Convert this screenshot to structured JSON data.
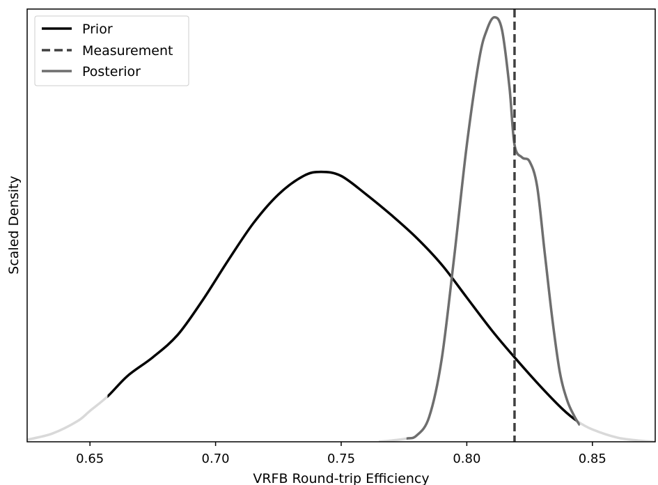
{
  "chart_data": {
    "type": "line",
    "xlabel": "VRFB Round-trip Efficiency",
    "ylabel": "Scaled Density",
    "xlim": [
      0.625,
      0.875
    ],
    "ylim": [
      0,
      1.05
    ],
    "x_ticks": [
      "0.65",
      "0.70",
      "0.75",
      "0.80",
      "0.85"
    ],
    "x_tick_values": [
      0.65,
      0.7,
      0.75,
      0.8,
      0.85
    ],
    "y_ticks": [],
    "grid": false,
    "legend": {
      "placement": "top-left",
      "entries": [
        {
          "label": "Prior",
          "color": "#000000",
          "style": "solid"
        },
        {
          "label": "Measurement",
          "color": "#404040",
          "style": "dashed"
        },
        {
          "label": "Posterior",
          "color": "#6e6e6e",
          "style": "solid"
        }
      ]
    },
    "measurement_x": 0.819,
    "series": [
      {
        "name": "Prior",
        "color": "#000000",
        "tail_color": "#d9d9d9",
        "highlight_range": [
          0.657,
          0.844
        ],
        "x": [
          0.625,
          0.635,
          0.645,
          0.65,
          0.657,
          0.665,
          0.675,
          0.685,
          0.695,
          0.705,
          0.715,
          0.725,
          0.735,
          0.742,
          0.75,
          0.76,
          0.77,
          0.78,
          0.79,
          0.8,
          0.81,
          0.819,
          0.83,
          0.838,
          0.844,
          0.85,
          0.86,
          0.87,
          0.875
        ],
        "y": [
          0.005,
          0.02,
          0.05,
          0.075,
          0.11,
          0.16,
          0.205,
          0.26,
          0.345,
          0.44,
          0.53,
          0.6,
          0.645,
          0.655,
          0.645,
          0.6,
          0.55,
          0.495,
          0.43,
          0.35,
          0.27,
          0.205,
          0.13,
          0.08,
          0.05,
          0.03,
          0.01,
          0.002,
          0.0
        ]
      },
      {
        "name": "Posterior",
        "color": "#6e6e6e",
        "tail_color": "#d9d9d9",
        "highlight_range": [
          0.776,
          0.845
        ],
        "x": [
          0.765,
          0.77,
          0.776,
          0.78,
          0.785,
          0.79,
          0.795,
          0.8,
          0.805,
          0.808,
          0.811,
          0.814,
          0.817,
          0.819,
          0.822,
          0.825,
          0.828,
          0.831,
          0.834,
          0.837,
          0.84,
          0.843,
          0.845
        ],
        "y": [
          0.0,
          0.003,
          0.008,
          0.015,
          0.06,
          0.2,
          0.45,
          0.72,
          0.93,
          1.0,
          1.03,
          1.0,
          0.86,
          0.72,
          0.69,
          0.68,
          0.62,
          0.46,
          0.3,
          0.17,
          0.1,
          0.06,
          0.04
        ]
      }
    ]
  }
}
